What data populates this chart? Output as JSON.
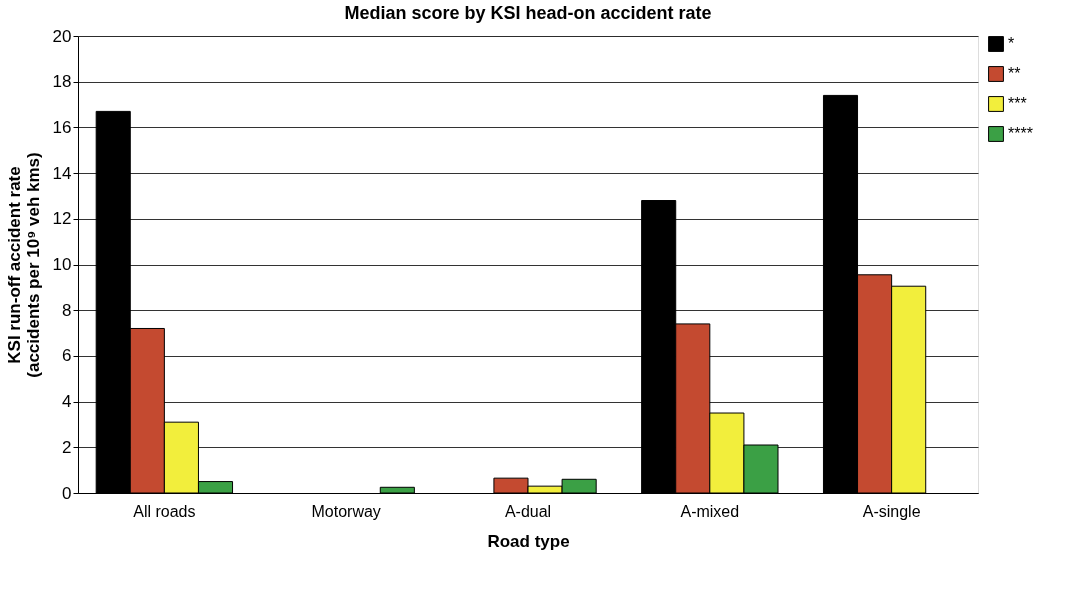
{
  "chart_data": {
    "type": "bar",
    "title": "Median score by KSI head-on accident rate",
    "xlabel": "Road type",
    "ylabel": "KSI run-off accident rate\n(accidents per 10⁹ veh kms)",
    "categories": [
      "All roads",
      "Motorway",
      "A-dual",
      "A-mixed",
      "A-single"
    ],
    "series": [
      {
        "name": "*",
        "color": "#000000",
        "values": [
          16.7,
          null,
          null,
          12.8,
          17.4
        ]
      },
      {
        "name": "**",
        "color": "#c44a30",
        "values": [
          7.2,
          null,
          0.65,
          7.4,
          9.55
        ]
      },
      {
        "name": "***",
        "color": "#f2ee3c",
        "values": [
          3.1,
          null,
          0.3,
          3.5,
          9.05
        ]
      },
      {
        "name": "****",
        "color": "#3ba045",
        "values": [
          0.5,
          0.25,
          0.6,
          2.1,
          null
        ]
      }
    ],
    "ylim": [
      0,
      20
    ],
    "yticks": [
      0,
      2,
      4,
      6,
      8,
      10,
      12,
      14,
      16,
      18,
      20
    ],
    "grid": "y",
    "legend": "right"
  }
}
